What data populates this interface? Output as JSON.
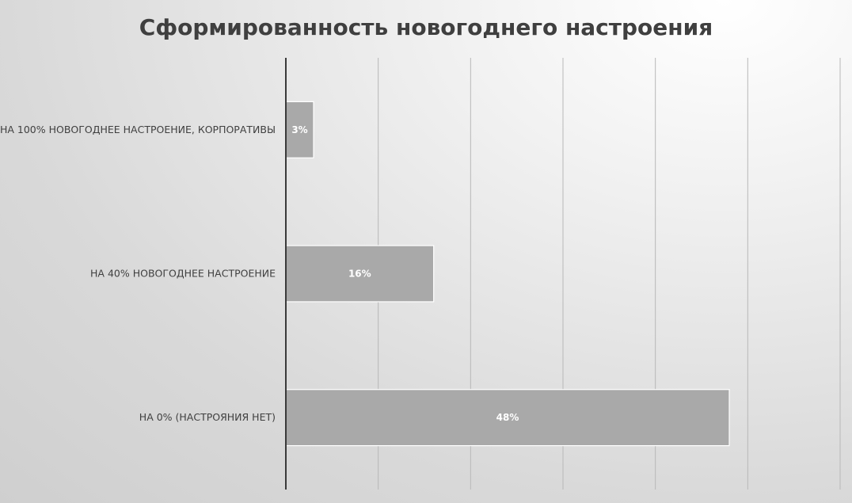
{
  "chart_data": {
    "type": "bar",
    "orientation": "horizontal",
    "title": "Сформированность новогоднего настроения",
    "categories": [
      "НА 100% НОВОГОДНЕЕ НАСТРОЕНИЕ, КОРПОРАТИВЫ",
      "НА 40% НОВОГОДНЕЕ НАСТРОЕНИЕ",
      "НА 0% (НАСТРОЯНИЯ НЕТ)"
    ],
    "values": [
      3,
      16,
      48
    ],
    "value_labels": [
      "3%",
      "16%",
      "48%"
    ],
    "xlabel": "",
    "ylabel": "",
    "xlim": [
      0,
      60
    ],
    "grid": true,
    "legend": "none",
    "colors": {
      "bar": "#a9a9a9",
      "value_label": "#ffffff"
    }
  }
}
